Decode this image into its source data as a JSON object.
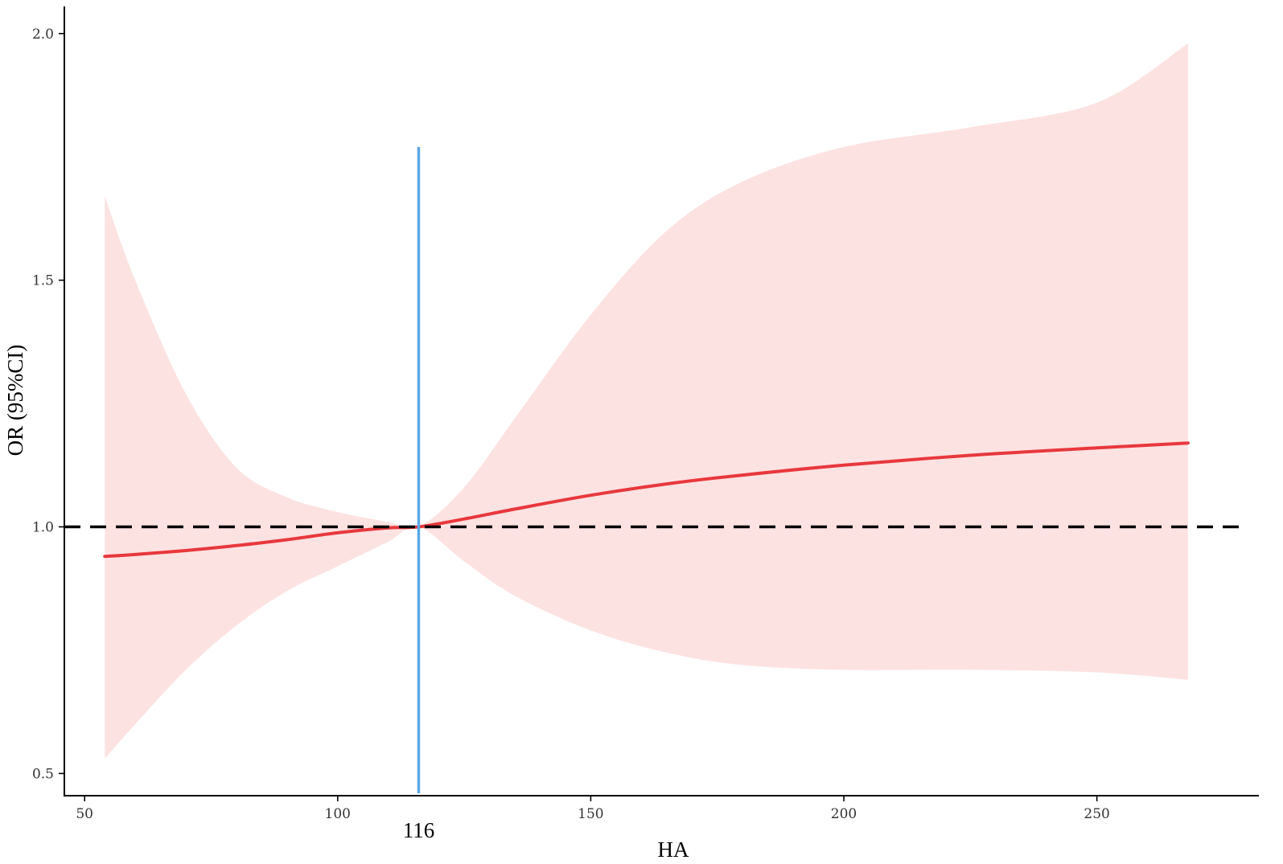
{
  "chart_data": {
    "type": "line",
    "title": "",
    "xlabel": "HA",
    "ylabel": "OR (95%CI)",
    "xlim": [
      46,
      282
    ],
    "ylim": [
      0.455,
      2.055
    ],
    "x_ticks": [
      50,
      100,
      150,
      200,
      250
    ],
    "y_ticks": [
      0.5,
      1.0,
      1.5,
      2.0
    ],
    "x_tick_labels": [
      "50",
      "100",
      "150",
      "200",
      "250"
    ],
    "y_tick_labels": [
      "0.5",
      "1.0",
      "1.5",
      "2.0"
    ],
    "grid": false,
    "reference_line": {
      "y": 1.0,
      "style": "dashed",
      "color": "#000000"
    },
    "cutoff_line": {
      "x": 116,
      "y_top": 1.77,
      "label": "116",
      "color": "#5aa9e6"
    },
    "series": [
      {
        "type": "line",
        "color": "#e8383d",
        "x": [
          54,
          60,
          70,
          80,
          90,
          100,
          110,
          116,
          125,
          135,
          150,
          165,
          180,
          200,
          225,
          250,
          268
        ],
        "y": [
          0.94,
          0.944,
          0.952,
          0.962,
          0.974,
          0.988,
          0.998,
          1.0,
          1.016,
          1.036,
          1.064,
          1.087,
          1.105,
          1.125,
          1.145,
          1.16,
          1.17
        ]
      },
      {
        "type": "band",
        "color": "#fde2e2",
        "x": [
          54,
          60,
          70,
          80,
          90,
          100,
          110,
          116,
          125,
          135,
          150,
          165,
          180,
          200,
          225,
          250,
          268
        ],
        "lower": [
          0.53,
          0.6,
          0.71,
          0.8,
          0.87,
          0.92,
          0.97,
          1.0,
          0.93,
          0.86,
          0.79,
          0.745,
          0.72,
          0.71,
          0.71,
          0.705,
          0.69
        ],
        "upper": [
          1.67,
          1.5,
          1.27,
          1.12,
          1.06,
          1.03,
          1.01,
          1.0,
          1.08,
          1.22,
          1.43,
          1.6,
          1.7,
          1.77,
          1.81,
          1.86,
          1.98
        ]
      }
    ]
  },
  "colors": {
    "axis": "#000000",
    "tick_text": "#333333"
  }
}
